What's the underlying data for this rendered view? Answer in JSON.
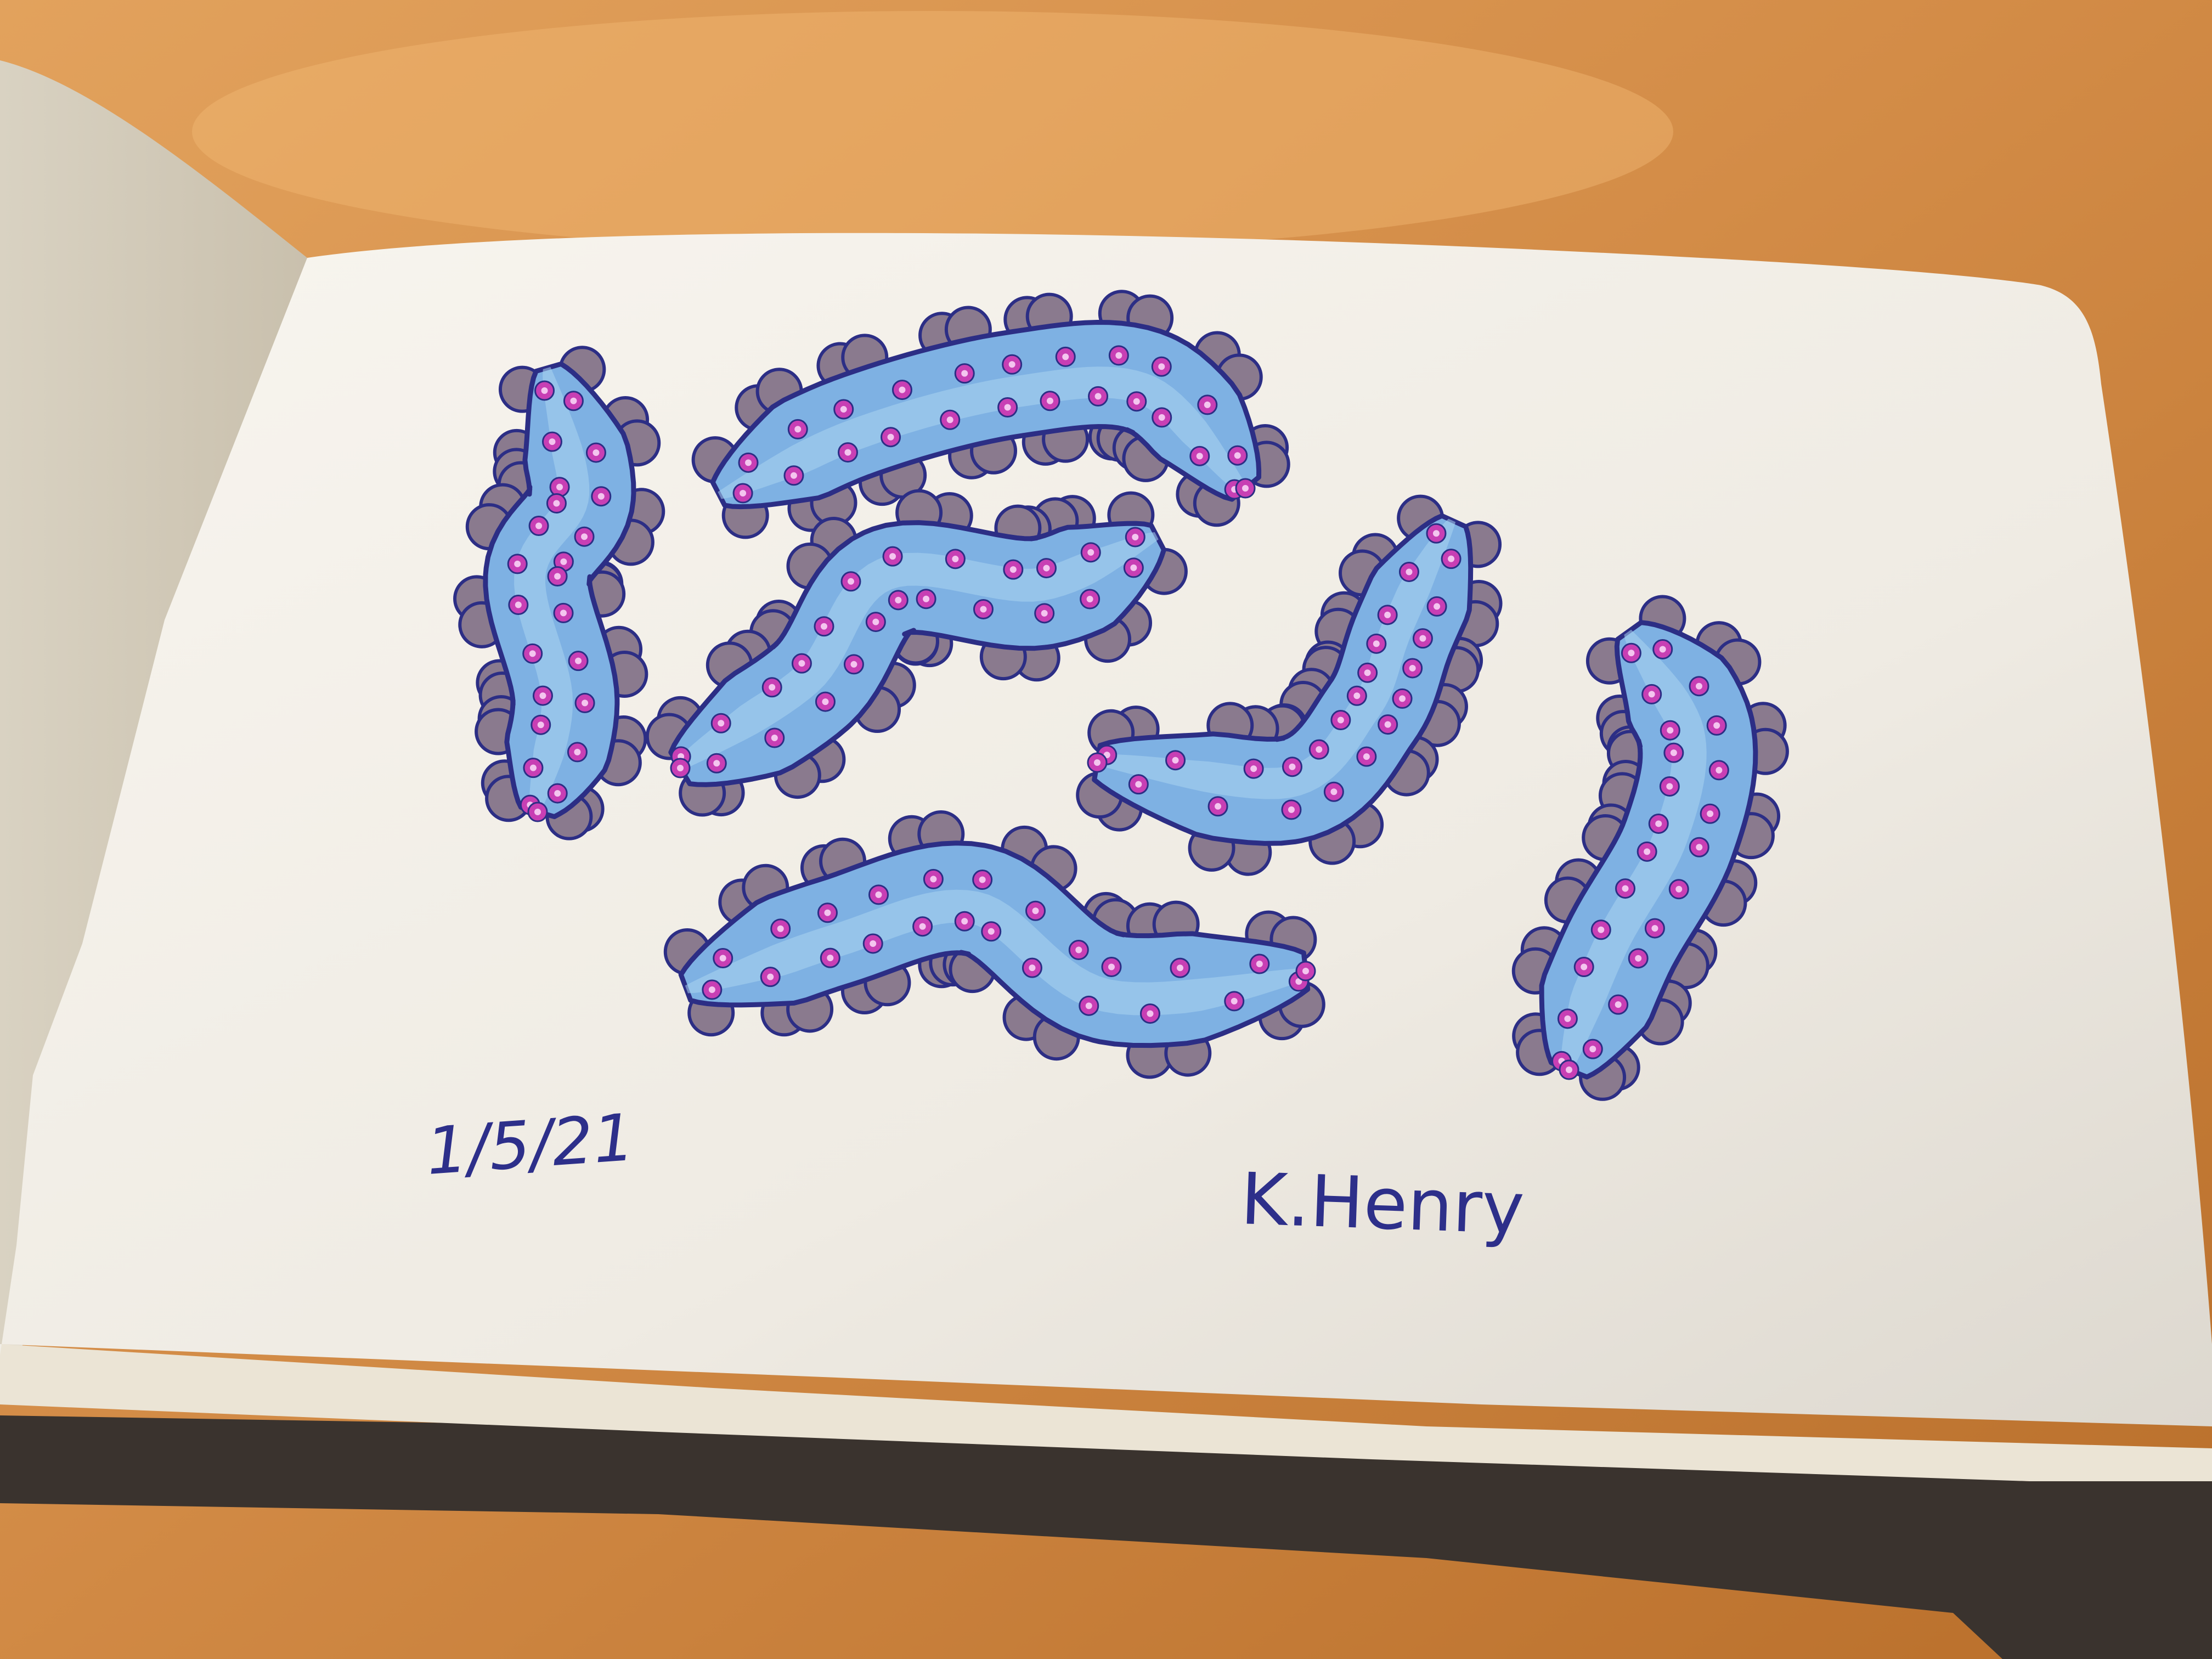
{
  "photo": {
    "subject": "",
    "date_text": "1/5/21",
    "signature_text": "K.Henry",
    "colors": {
      "table": "#c8843f",
      "table_light": "#e3a35d",
      "page": "#f1ede4",
      "shape_fill": "#7eb1e3",
      "shape_outline": "#2c2e85",
      "bump_fill": "#8a7a8e",
      "dot_fill": "#c83fb4",
      "dot_center": "#f4c5ef",
      "ink": "#2d2f8a"
    },
    "drawing": {
      "shape_count": 6,
      "shape_names": [
        "left-vertical-tentacle",
        "top-curved-tentacle",
        "center-left-tentacle",
        "center-right-tentacle",
        "bottom-center-tentacle",
        "right-vertical-tentacle"
      ]
    }
  }
}
